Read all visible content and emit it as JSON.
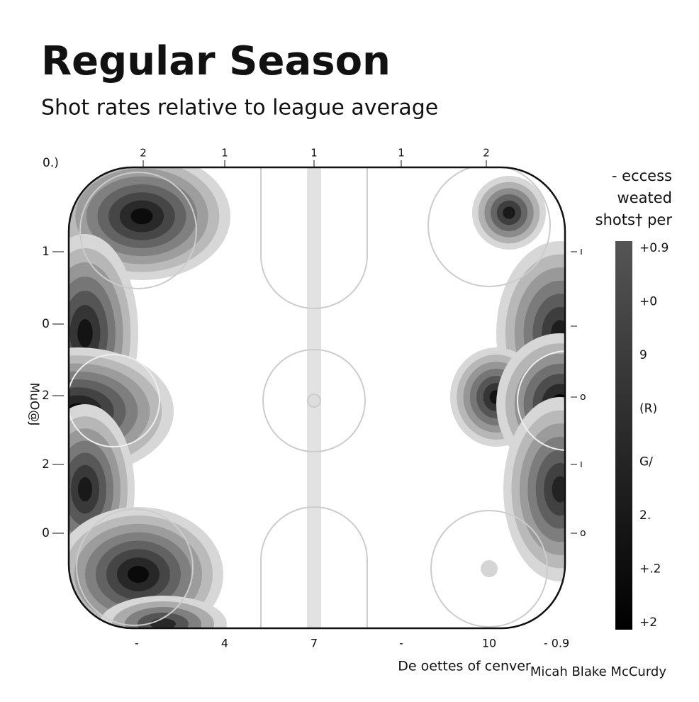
{
  "chart_data": {
    "type": "heatmap",
    "title": "Regular Season",
    "subtitle": "Shot rates relative to league average",
    "corner_label": "0.)",
    "top_labels": [
      "2",
      "1",
      "1",
      "1",
      "2"
    ],
    "left_labels": [
      "1",
      "0",
      "2",
      "2",
      "0"
    ],
    "right_labels": [
      "ı",
      "o",
      "ı",
      "o"
    ],
    "bottom_labels": [
      "-",
      "4",
      "7",
      "-",
      "10",
      "- 0.9"
    ],
    "xlabel": "De oettes of cenver",
    "ylabel": "MuO@J",
    "colorbar_title": [
      "- eccess",
      "weated",
      "shots† per"
    ],
    "colorbar_labels": [
      "+0.9",
      "+0",
      "9",
      "(R)",
      "G/",
      "2.",
      "+.2",
      "+2"
    ],
    "credit": "Micah Blake McCurdy"
  }
}
